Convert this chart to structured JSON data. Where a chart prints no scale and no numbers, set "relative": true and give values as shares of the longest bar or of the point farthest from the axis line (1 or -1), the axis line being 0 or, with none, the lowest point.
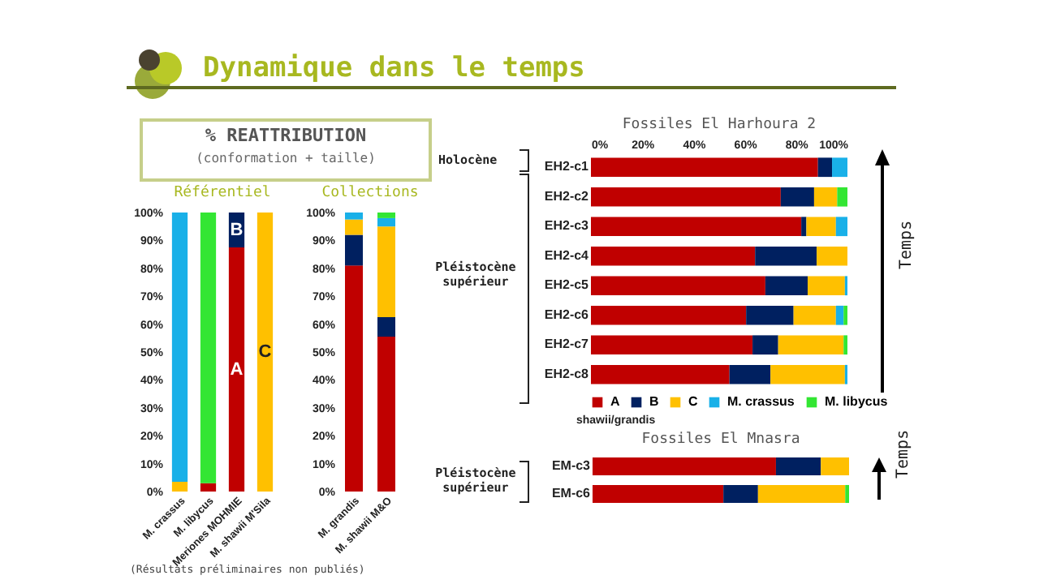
{
  "chart_data": [
    {
      "type": "bar",
      "stacked": true,
      "title": "Référentiel",
      "categories": [
        "M. crassus",
        "M. libycus",
        "Meriones MOHMIE",
        "M. shawii M'Sila"
      ],
      "series": [
        {
          "name": "A",
          "color": "#c00000",
          "values": [
            null,
            3,
            87.5,
            null
          ]
        },
        {
          "name": "B",
          "color": "#002060",
          "values": [
            null,
            null,
            12.5,
            null
          ]
        },
        {
          "name": "C",
          "color": "#ffc000",
          "values": [
            3.5,
            null,
            null,
            100
          ]
        },
        {
          "color": "#19b0e8",
          "values": [
            96.5,
            null,
            null,
            null
          ]
        },
        {
          "color": "#33e633",
          "values": [
            null,
            97,
            null,
            null
          ]
        }
      ],
      "ylim": [
        0,
        100
      ],
      "yticks": [
        {
          "value": 0,
          "label": "0%"
        },
        {
          "value": 10,
          "label": "10%"
        },
        {
          "value": 20,
          "label": "20%"
        },
        {
          "value": 30,
          "label": "30%"
        },
        {
          "value": 40,
          "label": "40%"
        },
        {
          "value": 50,
          "label": "50%"
        },
        {
          "value": 60,
          "label": "60%"
        },
        {
          "value": 70,
          "label": "70%"
        },
        {
          "value": 80,
          "label": "80%"
        },
        {
          "value": 90,
          "label": "90%"
        },
        {
          "value": 100,
          "label": "100%"
        }
      ],
      "annotations": [
        "Dynamique dans le temps",
        "% REATTRIBUTION",
        "(conformation + taille)",
        "(Résultats préliminaires non publiés)"
      ]
    },
    {
      "type": "bar",
      "stacked": true,
      "title": "Collections",
      "categories": [
        "M. grandis",
        "M. shawii M&O"
      ],
      "series": [
        {
          "color": "#c00000",
          "values": [
            81,
            55.5
          ]
        },
        {
          "color": "#002060",
          "values": [
            11,
            7
          ]
        },
        {
          "color": "#ffc000",
          "values": [
            5.5,
            32.5
          ]
        },
        {
          "color": "#19b0e8",
          "values": [
            2.5,
            3
          ]
        },
        {
          "color": "#33e633",
          "values": [
            null,
            2
          ]
        }
      ],
      "ylim": [
        0,
        100
      ],
      "yticks": [
        {
          "value": 0,
          "label": "0%"
        },
        {
          "value": 10,
          "label": "10%"
        },
        {
          "value": 20,
          "label": "20%"
        },
        {
          "value": 30,
          "label": "30%"
        },
        {
          "value": 40,
          "label": "40%"
        },
        {
          "value": 50,
          "label": "50%"
        },
        {
          "value": 60,
          "label": "60%"
        },
        {
          "value": 70,
          "label": "70%"
        },
        {
          "value": 80,
          "label": "80%"
        },
        {
          "value": 90,
          "label": "90%"
        },
        {
          "value": 100,
          "label": "100%"
        }
      ]
    },
    {
      "type": "bar",
      "stacked": true,
      "orientation": "horizontal",
      "title": "Fossiles El Harhoura 2",
      "categories": [
        "EH2-c1",
        "EH2-c2",
        "EH2-c3",
        "EH2-c4",
        "EH2-c5",
        "EH2-c6",
        "EH2-c7",
        "EH2-c8"
      ],
      "series": [
        {
          "name": "A",
          "color": "#c00000",
          "values": [
            88.5,
            74,
            82,
            64,
            68,
            60.5,
            63,
            54
          ]
        },
        {
          "name": "B",
          "color": "#002060",
          "values": [
            5.5,
            13,
            2,
            24,
            16.5,
            18.5,
            10,
            16
          ]
        },
        {
          "name": "C",
          "color": "#ffc000",
          "values": [
            null,
            9,
            11.5,
            12,
            14.5,
            16.5,
            25.5,
            29
          ]
        },
        {
          "name": "M. crassus",
          "color": "#19b0e8",
          "values": [
            6,
            null,
            4.5,
            null,
            1,
            3,
            null,
            1
          ]
        },
        {
          "name": "M. libycus",
          "color": "#33e633",
          "values": [
            null,
            4,
            null,
            null,
            null,
            1.5,
            1.5,
            null
          ]
        }
      ],
      "xlim": [
        0,
        100
      ],
      "xticks": [
        {
          "value": 0,
          "label": "0%"
        },
        {
          "value": 20,
          "label": "20%"
        },
        {
          "value": 40,
          "label": "40%"
        },
        {
          "value": 60,
          "label": "60%"
        },
        {
          "value": 80,
          "label": "80%"
        },
        {
          "value": 100,
          "label": "100%"
        }
      ],
      "legend": "bottom",
      "annotations": [
        "Holocène",
        "Pléistocène supérieur",
        "Temps",
        "shawii/grandis"
      ]
    },
    {
      "type": "bar",
      "stacked": true,
      "orientation": "horizontal",
      "relative": true,
      "title": "Fossiles El Mnasra",
      "categories": [
        "EM-c3",
        "EM-c6"
      ],
      "series": [
        {
          "color": "#c00000",
          "values": [
            0.715,
            0.51
          ]
        },
        {
          "color": "#002060",
          "values": [
            0.175,
            0.135
          ]
        },
        {
          "color": "#ffc000",
          "values": [
            0.11,
            0.34
          ]
        },
        {
          "color": "#33e633",
          "values": [
            null,
            0.015
          ]
        }
      ],
      "annotations": [
        "Pléistocène supérieur",
        "Temps"
      ]
    }
  ]
}
